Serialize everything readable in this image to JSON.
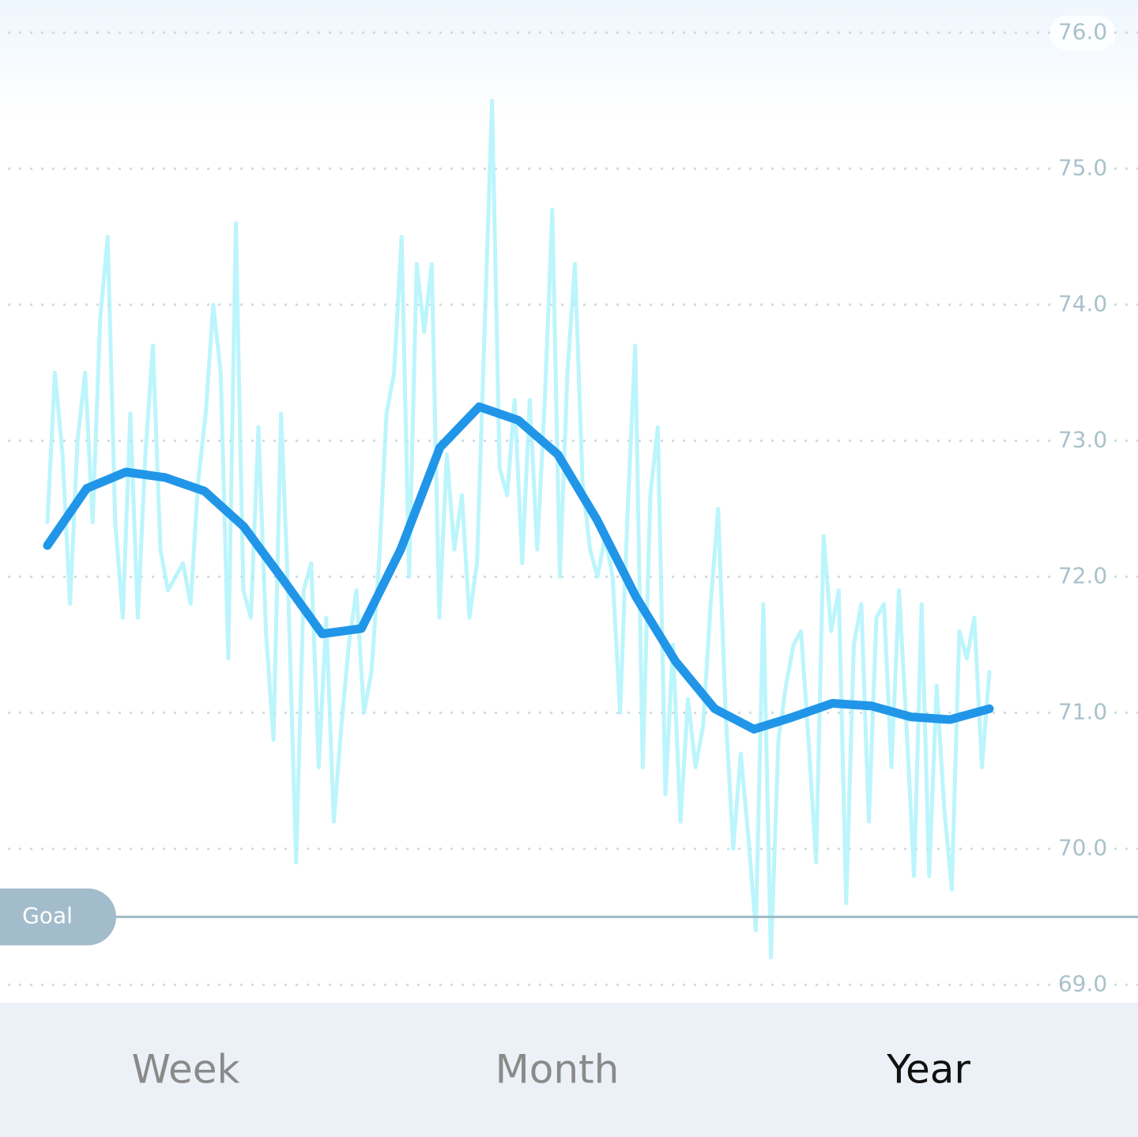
{
  "chart_data": {
    "type": "line",
    "ylim": [
      68.87,
      76.24
    ],
    "yticks": [
      {
        "value": 69,
        "label": "69.0"
      },
      {
        "value": 70,
        "label": "70.0"
      },
      {
        "value": 71,
        "label": "71.0"
      },
      {
        "value": 72,
        "label": "72.0"
      },
      {
        "value": 73,
        "label": "73.0"
      },
      {
        "value": 74,
        "label": "74.0"
      },
      {
        "value": 75,
        "label": "75.0"
      },
      {
        "value": 76,
        "label": "76.0"
      }
    ],
    "grid": true,
    "goal": {
      "value": 69.5,
      "label": "Goal"
    },
    "series": [
      {
        "color": "#a6f1fb",
        "values": [
          72.4,
          73.5,
          72.9,
          71.8,
          73.0,
          73.5,
          72.4,
          73.9,
          74.5,
          72.4,
          71.7,
          73.2,
          71.7,
          72.9,
          73.7,
          72.2,
          71.9,
          72.0,
          72.1,
          71.8,
          72.7,
          73.2,
          74.0,
          73.5,
          71.4,
          74.6,
          71.9,
          71.7,
          73.1,
          71.6,
          70.8,
          73.2,
          71.8,
          69.9,
          71.9,
          72.1,
          70.6,
          71.7,
          70.2,
          70.9,
          71.5,
          71.9,
          71.0,
          71.3,
          72.1,
          73.2,
          73.5,
          74.5,
          72.0,
          74.3,
          73.8,
          74.3,
          71.7,
          72.9,
          72.2,
          72.6,
          71.7,
          72.1,
          73.8,
          75.5,
          72.8,
          72.6,
          73.3,
          72.1,
          73.3,
          72.2,
          73.3,
          74.7,
          72.0,
          73.5,
          74.3,
          72.7,
          72.2,
          72.0,
          72.3,
          72.0,
          71.0,
          72.5,
          73.7,
          70.6,
          72.6,
          73.1,
          70.4,
          71.5,
          70.2,
          71.1,
          70.6,
          70.9,
          71.8,
          72.5,
          71.0,
          70.0,
          70.7,
          70.1,
          69.4,
          71.8,
          69.2,
          70.8,
          71.2,
          71.5,
          71.6,
          70.8,
          69.9,
          72.3,
          71.6,
          71.9,
          69.6,
          71.5,
          71.8,
          70.2,
          71.7,
          71.8,
          70.6,
          71.9,
          70.9,
          69.8,
          71.8,
          69.8,
          71.2,
          70.3,
          69.7,
          71.6,
          71.4,
          71.7,
          70.6,
          71.3
        ]
      },
      {
        "color": "#2196e8",
        "values": [
          72.23,
          72.65,
          72.77,
          72.73,
          72.63,
          72.37,
          71.98,
          71.58,
          71.62,
          72.2,
          72.95,
          73.25,
          73.15,
          72.9,
          72.42,
          71.85,
          71.38,
          71.03,
          70.88,
          70.97,
          71.07,
          71.05,
          70.97,
          70.95,
          71.03
        ]
      }
    ],
    "tabs": [
      "Week",
      "Month",
      "Year"
    ],
    "selected_tab": 2
  }
}
